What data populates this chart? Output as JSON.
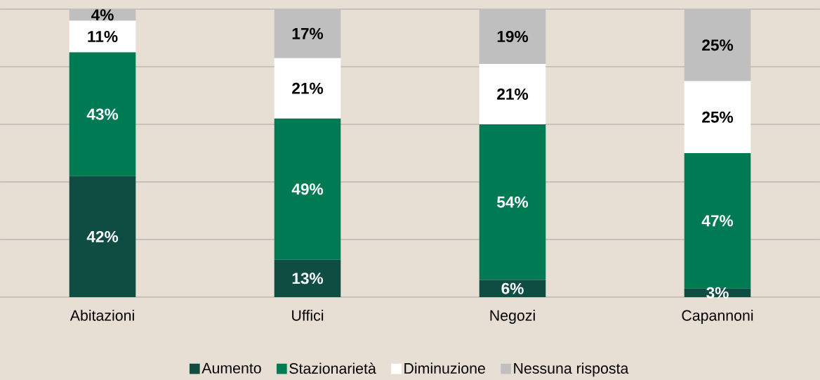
{
  "chart_data": {
    "type": "bar",
    "stacked": true,
    "categories": [
      "Abitazioni",
      "Uffici",
      "Negozi",
      "Capannoni"
    ],
    "series": [
      {
        "name": "Aumento",
        "color": "#0f4c42",
        "values": [
          42,
          13,
          6,
          3
        ],
        "value_labels": [
          "42%",
          "13%",
          "6%",
          "3%"
        ]
      },
      {
        "name": "Stazionarietà",
        "color": "#007a53",
        "values": [
          43,
          49,
          54,
          47
        ],
        "value_labels": [
          "43%",
          "49%",
          "54%",
          "47%"
        ]
      },
      {
        "name": "Diminuzione",
        "color": "#ffffff",
        "values": [
          11,
          21,
          21,
          25
        ],
        "value_labels": [
          "11%",
          "21%",
          "21%",
          "25%"
        ]
      },
      {
        "name": "Nessuna risposta",
        "color": "#bfbfbf",
        "values": [
          4,
          17,
          19,
          25
        ],
        "value_labels": [
          "4%",
          "17%",
          "19%",
          "25%"
        ]
      }
    ],
    "ylim": [
      0,
      100
    ],
    "yticks": [
      {
        "value": 0,
        "label": null
      },
      {
        "value": 20,
        "label": null
      },
      {
        "value": 40,
        "label": null
      },
      {
        "value": 60,
        "label": null
      },
      {
        "value": 80,
        "label": null
      },
      {
        "value": 100,
        "label": null
      }
    ],
    "tick_labels": "x",
    "grid": "y",
    "legend": "bottom"
  }
}
